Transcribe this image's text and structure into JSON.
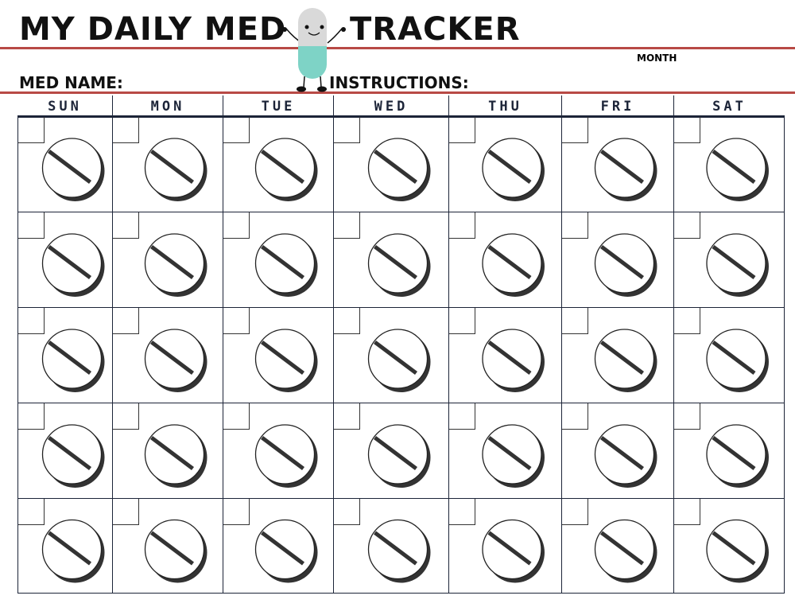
{
  "header": {
    "title_left": "MY DAILY MED",
    "title_right": "TRACKER",
    "month_label": "MONTH",
    "med_name_label": "MED NAME:",
    "instructions_label": "INSTRUCTIONS:",
    "mascot": "smiling-pill-mascot-icon",
    "accent_line_color": "#b84a45",
    "mascot_color": "#7ed3c6"
  },
  "calendar": {
    "days": [
      "SUN",
      "MON",
      "TUE",
      "WED",
      "THU",
      "FRI",
      "SAT"
    ],
    "weeks": 5,
    "cell_icon": "pill-tablet-icon",
    "cell_checkbox": "checkbox"
  }
}
